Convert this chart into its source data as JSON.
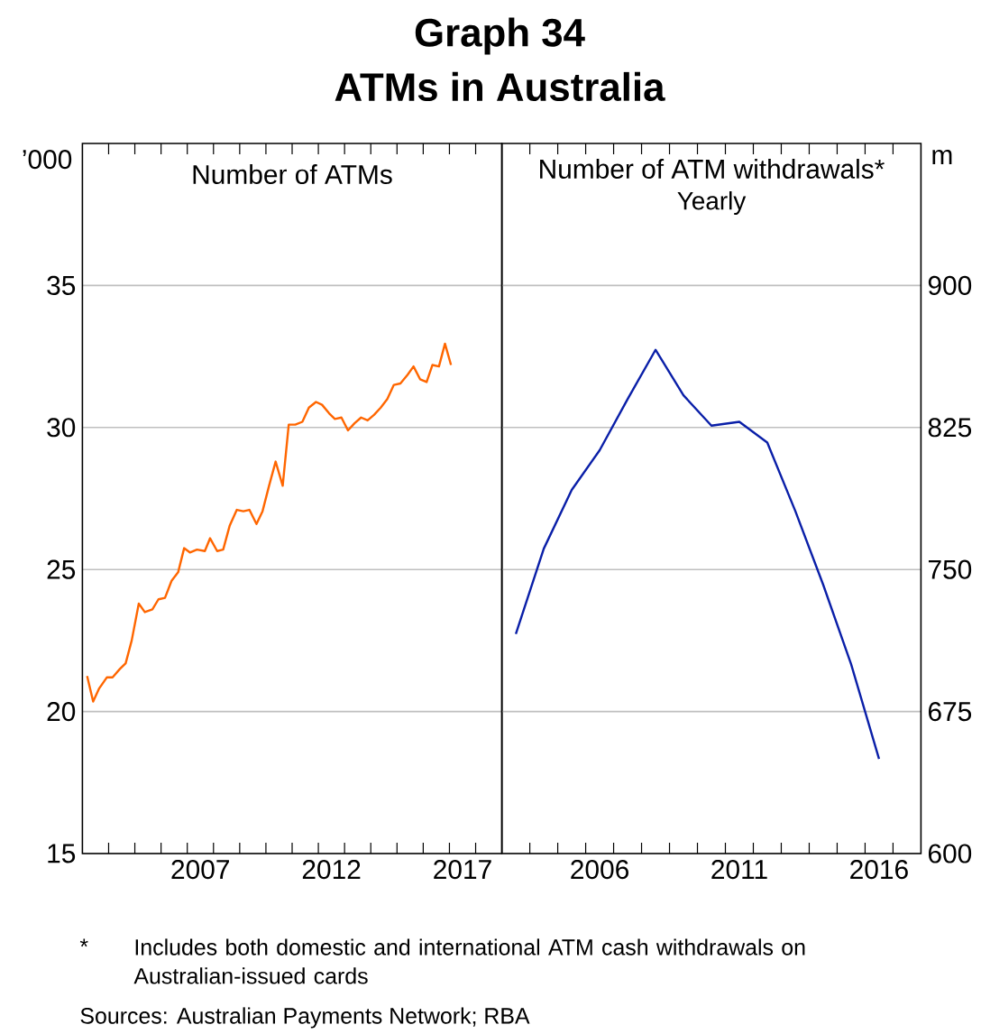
{
  "chart_data": [
    {
      "type": "line",
      "title": "Graph 34",
      "subtitle": "ATMs in Australia",
      "ylabel": "’000",
      "annotations": [
        "Number of ATMs"
      ],
      "x": [
        2003.18,
        2003.41,
        2003.63,
        2003.93,
        2004.15,
        2004.43,
        2004.65,
        2004.88,
        2005.15,
        2005.38,
        2005.67,
        2005.9,
        2006.15,
        2006.4,
        2006.65,
        2006.88,
        2007.1,
        2007.37,
        2007.67,
        2007.87,
        2008.14,
        2008.37,
        2008.62,
        2008.89,
        2009.14,
        2009.37,
        2009.64,
        2009.87,
        2010.12,
        2010.37,
        2010.64,
        2010.87,
        2011.12,
        2011.39,
        2011.64,
        2011.91,
        2012.14,
        2012.41,
        2012.63,
        2012.88,
        2013.13,
        2013.38,
        2013.63,
        2013.88,
        2014.13,
        2014.38,
        2014.63,
        2014.88,
        2015.13,
        2015.4,
        2015.63,
        2015.88,
        2016.13,
        2016.35,
        2016.6,
        2016.83,
        2017.06
      ],
      "values": [
        21.25,
        20.35,
        20.8,
        21.2,
        21.2,
        21.5,
        21.7,
        22.5,
        23.8,
        23.5,
        23.6,
        23.95,
        24.0,
        24.6,
        24.9,
        25.75,
        25.6,
        25.7,
        25.65,
        26.1,
        25.65,
        25.7,
        26.55,
        27.1,
        27.05,
        27.1,
        26.6,
        27.05,
        27.95,
        28.8,
        27.95,
        30.1,
        30.1,
        30.2,
        30.7,
        30.9,
        30.8,
        30.5,
        30.3,
        30.35,
        29.9,
        30.15,
        30.35,
        30.25,
        30.45,
        30.7,
        31.0,
        31.5,
        31.55,
        31.85,
        32.15,
        31.7,
        31.6,
        32.2,
        32.15,
        32.95,
        32.2
      ],
      "color": "#ff6600",
      "xlim": [
        2003,
        2019
      ],
      "xticks": [
        {
          "value": 2004,
          "label": null
        },
        {
          "value": 2005,
          "label": null
        },
        {
          "value": 2006,
          "label": null
        },
        {
          "value": 2007,
          "label": null
        },
        {
          "value": 2007.5,
          "label": "2007"
        },
        {
          "value": 2008,
          "label": null
        },
        {
          "value": 2009,
          "label": null
        },
        {
          "value": 2010,
          "label": null
        },
        {
          "value": 2011,
          "label": null
        },
        {
          "value": 2012,
          "label": null
        },
        {
          "value": 2012.5,
          "label": "2012"
        },
        {
          "value": 2013,
          "label": null
        },
        {
          "value": 2014,
          "label": null
        },
        {
          "value": 2015,
          "label": null
        },
        {
          "value": 2016,
          "label": null
        },
        {
          "value": 2017,
          "label": null
        },
        {
          "value": 2017.5,
          "label": "2017"
        },
        {
          "value": 2018,
          "label": null
        }
      ],
      "ylim": [
        15,
        40
      ],
      "yticks": [
        15,
        20,
        25,
        30,
        35
      ],
      "grid": "y"
    },
    {
      "type": "line",
      "ylabel": "m",
      "annotations": [
        "Number of ATM withdrawals*",
        "Yearly",
        "*",
        "Includes both domestic and international ATM cash withdrawals on Australian-issued cards",
        "Sources: Australian Payments Network; RBA"
      ],
      "x": [
        2003.5,
        2004.5,
        2005.5,
        2006.5,
        2007.5,
        2008.5,
        2009.5,
        2010.5,
        2011.5,
        2012.5,
        2013.5,
        2014.5,
        2015.5,
        2016.5
      ],
      "values": [
        716,
        761,
        792,
        813,
        840,
        866,
        842,
        826,
        828,
        817,
        781,
        742,
        700,
        650
      ],
      "color": "#0a1fa8",
      "xlim": [
        2003,
        2018
      ],
      "xticks": [
        {
          "value": 2004,
          "label": null
        },
        {
          "value": 2005,
          "label": null
        },
        {
          "value": 2006,
          "label": null
        },
        {
          "value": 2006.5,
          "label": "2006"
        },
        {
          "value": 2007,
          "label": null
        },
        {
          "value": 2008,
          "label": null
        },
        {
          "value": 2009,
          "label": null
        },
        {
          "value": 2010,
          "label": null
        },
        {
          "value": 2011,
          "label": null
        },
        {
          "value": 2011.5,
          "label": "2011"
        },
        {
          "value": 2012,
          "label": null
        },
        {
          "value": 2013,
          "label": null
        },
        {
          "value": 2014,
          "label": null
        },
        {
          "value": 2015,
          "label": null
        },
        {
          "value": 2016,
          "label": null
        },
        {
          "value": 2016.5,
          "label": "2016"
        },
        {
          "value": 2017,
          "label": null
        }
      ],
      "ylim": [
        600,
        975
      ],
      "yticks": [
        600,
        675,
        750,
        825,
        900
      ],
      "grid": "y"
    }
  ]
}
